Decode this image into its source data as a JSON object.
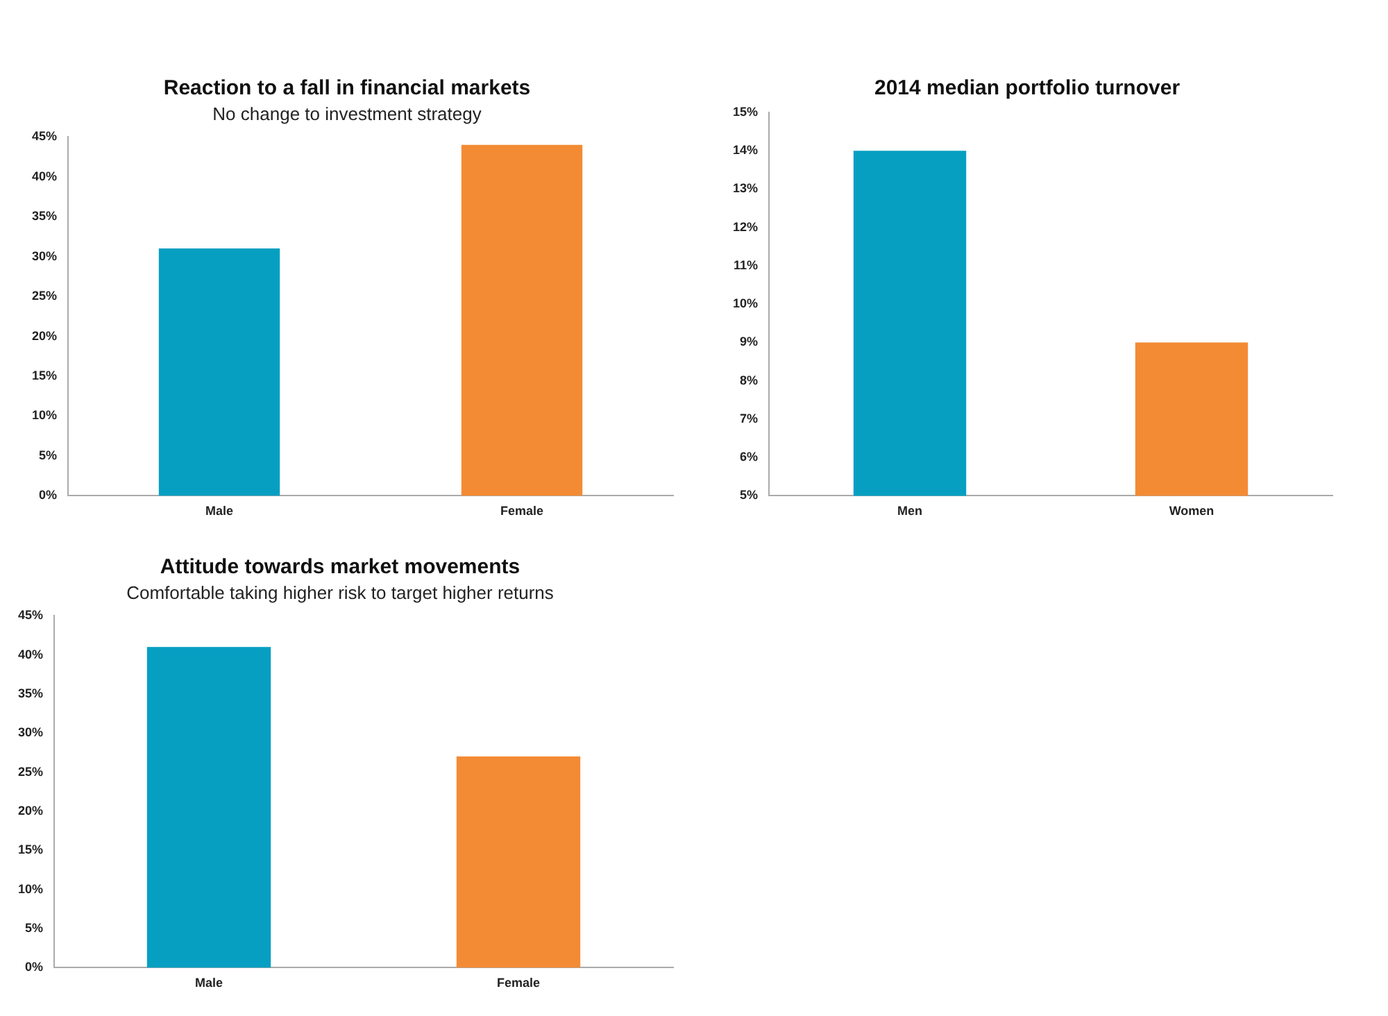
{
  "chart_data": [
    {
      "type": "bar",
      "title": "Reaction to a fall in financial markets",
      "subtitle": "No change to investment strategy",
      "categories": [
        "Male",
        "Female"
      ],
      "values": [
        31,
        44
      ],
      "colors": [
        "#069fc2",
        "#f38b34"
      ],
      "ylim": [
        0,
        45
      ],
      "yticks": [
        {
          "value": 0,
          "label": "0%"
        },
        {
          "value": 5,
          "label": "5%"
        },
        {
          "value": 10,
          "label": "10%"
        },
        {
          "value": 15,
          "label": "15%"
        },
        {
          "value": 20,
          "label": "20%"
        },
        {
          "value": 25,
          "label": "25%"
        },
        {
          "value": 30,
          "label": "30%"
        },
        {
          "value": 35,
          "label": "35%"
        },
        {
          "value": 40,
          "label": "40%"
        },
        {
          "value": 45,
          "label": "45%"
        }
      ],
      "grid": false,
      "legend": false
    },
    {
      "type": "bar",
      "title": "2014 median portfolio turnover",
      "categories": [
        "Men",
        "Women"
      ],
      "values": [
        14,
        9
      ],
      "colors": [
        "#069fc2",
        "#f38b34"
      ],
      "ylim": [
        5,
        15
      ],
      "yticks": [
        {
          "value": 5,
          "label": "5%"
        },
        {
          "value": 6,
          "label": "6%"
        },
        {
          "value": 7,
          "label": "7%"
        },
        {
          "value": 8,
          "label": "8%"
        },
        {
          "value": 9,
          "label": "9%"
        },
        {
          "value": 10,
          "label": "10%"
        },
        {
          "value": 11,
          "label": "11%"
        },
        {
          "value": 12,
          "label": "12%"
        },
        {
          "value": 13,
          "label": "13%"
        },
        {
          "value": 14,
          "label": "14%"
        },
        {
          "value": 15,
          "label": "15%"
        }
      ],
      "grid": false,
      "legend": false
    },
    {
      "type": "bar",
      "title": "Attitude towards market movements",
      "subtitle": "Comfortable taking higher risk to target higher returns",
      "categories": [
        "Male",
        "Female"
      ],
      "values": [
        41,
        27
      ],
      "colors": [
        "#069fc2",
        "#f38b34"
      ],
      "ylim": [
        0,
        45
      ],
      "yticks": [
        {
          "value": 0,
          "label": "0%"
        },
        {
          "value": 5,
          "label": "5%"
        },
        {
          "value": 10,
          "label": "10%"
        },
        {
          "value": 15,
          "label": "15%"
        },
        {
          "value": 20,
          "label": "20%"
        },
        {
          "value": 25,
          "label": "25%"
        },
        {
          "value": 30,
          "label": "30%"
        },
        {
          "value": 35,
          "label": "35%"
        },
        {
          "value": 40,
          "label": "40%"
        },
        {
          "value": 45,
          "label": "45%"
        }
      ],
      "grid": false,
      "legend": false
    }
  ]
}
